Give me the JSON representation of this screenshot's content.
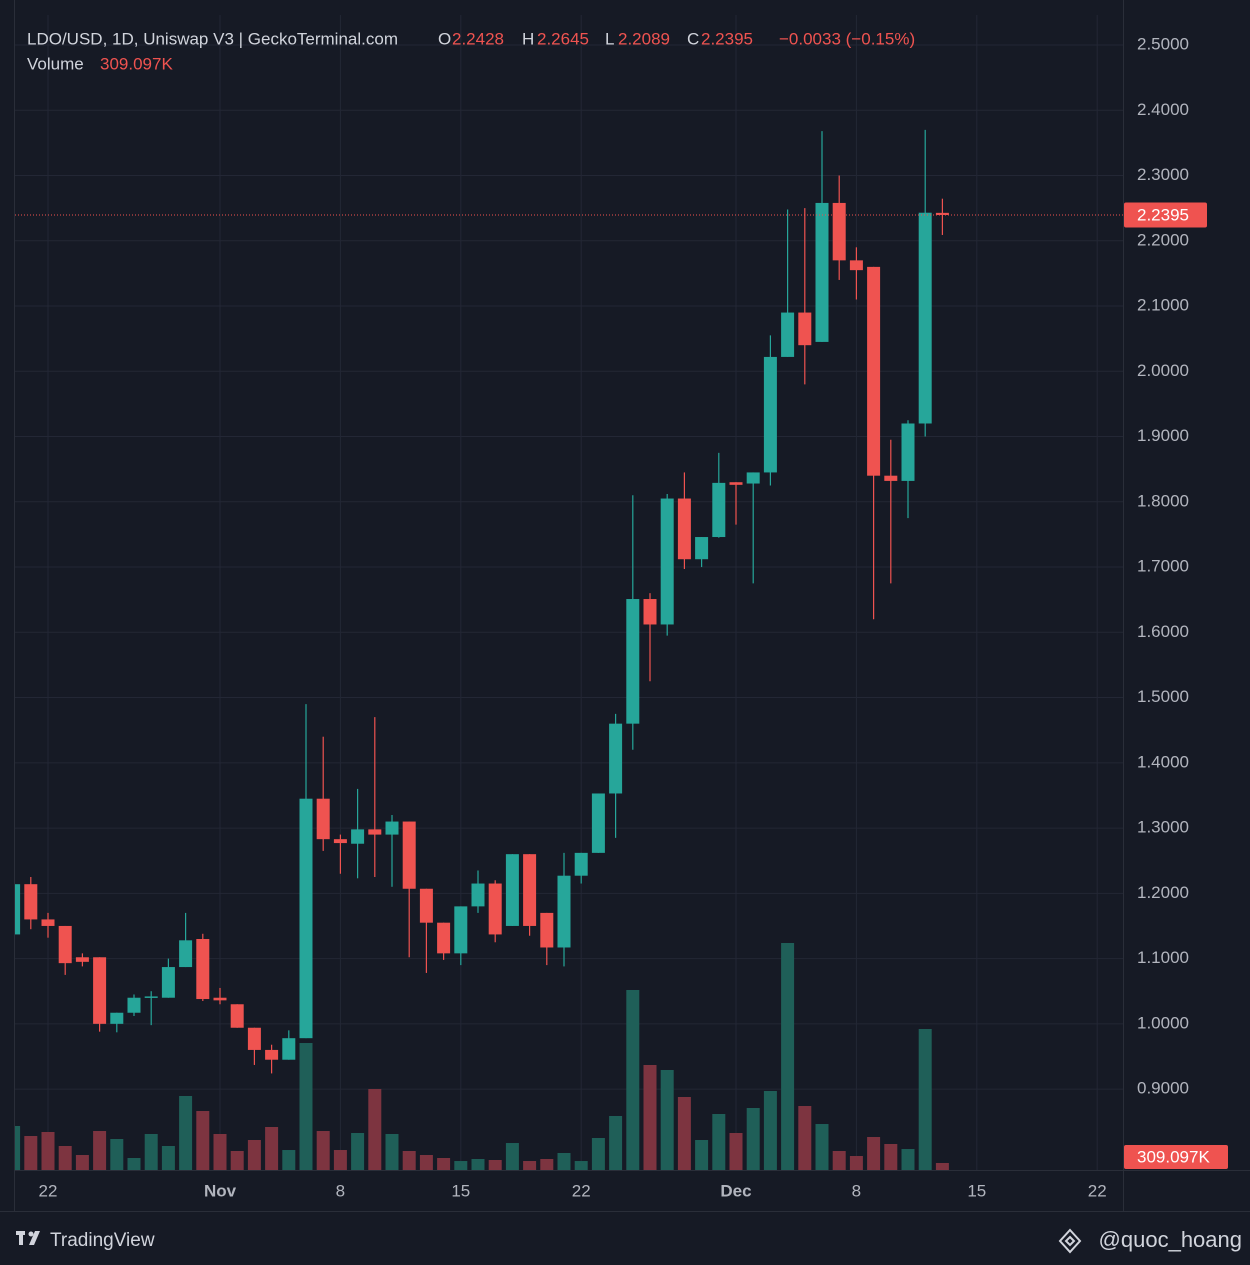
{
  "chart_data": {
    "type": "candlestick",
    "title": "LDO/USD, 1D, Uniswap V3 | GeckoTerminal.com",
    "ohlc_labels": [
      "O",
      "H",
      "L",
      "C"
    ],
    "change": "−0.0033 (−0.15%)",
    "volume_name": "Volume",
    "volume_label": "309.097K",
    "categories": [
      null,
      null,
      "22",
      null,
      null,
      null,
      null,
      null,
      null,
      null,
      null,
      null,
      "Nov",
      null,
      null,
      null,
      null,
      null,
      null,
      "8",
      null,
      null,
      null,
      null,
      null,
      null,
      "15",
      null,
      null,
      null,
      null,
      null,
      null,
      "22",
      null,
      null,
      null,
      null,
      null,
      null,
      null,
      null,
      "Dec",
      null,
      null,
      null,
      null,
      null,
      null,
      "8",
      null,
      null,
      null,
      null,
      null,
      null,
      "15",
      null,
      null,
      null,
      null,
      null,
      null,
      "22",
      null
    ],
    "open": [
      1.137,
      1.214,
      1.16,
      1.15,
      1.102,
      1.102,
      1.0,
      1.017,
      1.04,
      1.04,
      1.087,
      1.13,
      1.04,
      1.03,
      0.994,
      0.96,
      0.945,
      0.978,
      1.345,
      1.283,
      1.276,
      1.298,
      1.29,
      1.31,
      1.207,
      1.155,
      1.108,
      1.18,
      1.215,
      1.15,
      1.26,
      1.17,
      1.117,
      1.227,
      1.262,
      1.353,
      1.46,
      1.651,
      1.612,
      1.805,
      1.712,
      1.746,
      1.83,
      1.828,
      1.845,
      2.022,
      2.09,
      2.045,
      2.258,
      2.17,
      2.16,
      1.84,
      1.832,
      1.92,
      2.2428,
      null,
      null,
      null,
      null,
      null,
      null,
      null,
      null,
      null,
      null
    ],
    "high": [
      1.22,
      1.225,
      1.17,
      1.15,
      1.108,
      1.102,
      1.017,
      1.045,
      1.05,
      1.1,
      1.17,
      1.138,
      1.055,
      1.03,
      0.994,
      0.968,
      0.99,
      1.49,
      1.44,
      1.29,
      1.36,
      1.47,
      1.32,
      1.31,
      1.207,
      1.155,
      1.18,
      1.235,
      1.22,
      1.26,
      1.26,
      1.17,
      1.262,
      1.262,
      1.353,
      1.475,
      1.81,
      1.66,
      1.812,
      1.845,
      1.746,
      1.875,
      1.83,
      1.845,
      2.055,
      2.248,
      2.25,
      2.368,
      2.3,
      2.19,
      2.16,
      1.895,
      1.925,
      2.37,
      2.2645,
      null,
      null,
      null,
      null,
      null,
      null,
      null,
      null,
      null,
      null
    ],
    "low": [
      1.13,
      1.145,
      1.132,
      1.075,
      1.088,
      0.988,
      0.987,
      1.012,
      0.998,
      1.04,
      1.087,
      1.035,
      1.03,
      0.994,
      0.937,
      0.924,
      0.945,
      0.978,
      1.265,
      1.23,
      1.223,
      1.225,
      1.21,
      1.102,
      1.078,
      1.098,
      1.09,
      1.17,
      1.125,
      1.15,
      1.135,
      1.09,
      1.088,
      1.215,
      1.262,
      1.285,
      1.42,
      1.525,
      1.595,
      1.697,
      1.7,
      1.745,
      1.765,
      1.675,
      1.825,
      2.022,
      1.98,
      2.045,
      2.14,
      2.11,
      1.62,
      1.675,
      1.775,
      1.9,
      2.2089,
      null,
      null,
      null,
      null,
      null,
      null,
      null,
      null,
      null,
      null
    ],
    "close": [
      1.214,
      1.16,
      1.15,
      1.093,
      1.095,
      1.0,
      1.017,
      1.04,
      1.042,
      1.087,
      1.128,
      1.038,
      1.036,
      0.994,
      0.96,
      0.945,
      0.978,
      1.345,
      1.283,
      1.277,
      1.298,
      1.29,
      1.31,
      1.207,
      1.155,
      1.108,
      1.18,
      1.215,
      1.137,
      1.26,
      1.15,
      1.117,
      1.227,
      1.262,
      1.353,
      1.46,
      1.651,
      1.612,
      1.805,
      1.712,
      1.746,
      1.829,
      1.826,
      1.845,
      2.022,
      2.09,
      2.04,
      2.258,
      2.17,
      2.155,
      1.84,
      1.832,
      1.92,
      2.243,
      2.2395,
      null,
      null,
      null,
      null,
      null,
      null,
      null,
      null,
      null,
      null
    ],
    "volume": [
      1943000,
      1501000,
      1678000,
      1060000,
      662000,
      1722000,
      1369000,
      530000,
      1590000,
      1060000,
      3268000,
      2605000,
      1590000,
      839000,
      1325000,
      1899000,
      883000,
      5608000,
      1722000,
      883000,
      1634000,
      3577000,
      1590000,
      839000,
      662000,
      530000,
      397000,
      486000,
      442000,
      1192000,
      397000,
      486000,
      751000,
      397000,
      1413000,
      2385000,
      7949000,
      4637000,
      4416000,
      3224000,
      1325000,
      2473000,
      1634000,
      2738000,
      3489000,
      10024000,
      2826000,
      2031000,
      839000,
      618000,
      1457000,
      1148000,
      927000,
      6227000,
      309097,
      null,
      null,
      null,
      null,
      null,
      null,
      null,
      null,
      null,
      null
    ],
    "ylim": [
      0.776,
      2.546
    ],
    "yticks": [
      {
        "value": 0.9,
        "label": "0.9000"
      },
      {
        "value": 1.0,
        "label": "1.0000"
      },
      {
        "value": 1.1,
        "label": "1.1000"
      },
      {
        "value": 1.2,
        "label": "1.2000"
      },
      {
        "value": 1.3,
        "label": "1.3000"
      },
      {
        "value": 1.4,
        "label": "1.4000"
      },
      {
        "value": 1.5,
        "label": "1.5000"
      },
      {
        "value": 1.6,
        "label": "1.6000"
      },
      {
        "value": 1.7,
        "label": "1.7000"
      },
      {
        "value": 1.8,
        "label": "1.8000"
      },
      {
        "value": 1.9,
        "label": "1.9000"
      },
      {
        "value": 2.0,
        "label": "2.0000"
      },
      {
        "value": 2.1,
        "label": "2.1000"
      },
      {
        "value": 2.2,
        "label": "2.2000"
      },
      {
        "value": 2.3,
        "label": "2.3000"
      },
      {
        "value": 2.4,
        "label": "2.4000"
      },
      {
        "value": 2.5,
        "label": "2.5000"
      }
    ],
    "grid": true,
    "up_color": "#26a69a",
    "down_color": "#ef5350",
    "volume_up_color": "#1f5f58",
    "volume_down_color": "#7d3440"
  },
  "footer": {
    "brand": "TradingView",
    "credit": "@quoc_hoang"
  }
}
